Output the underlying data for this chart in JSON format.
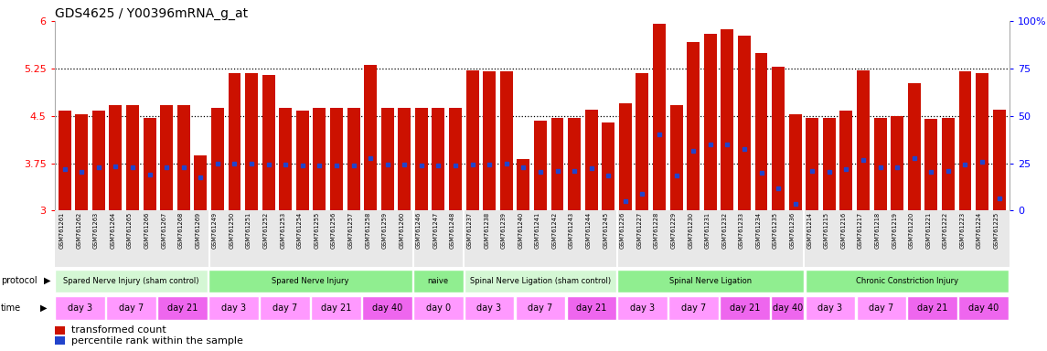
{
  "title": "GDS4625 / Y00396mRNA_g_at",
  "gsm_ids": [
    "GSM761261",
    "GSM761262",
    "GSM761263",
    "GSM761264",
    "GSM761265",
    "GSM761266",
    "GSM761267",
    "GSM761268",
    "GSM761269",
    "GSM761249",
    "GSM761250",
    "GSM761251",
    "GSM761252",
    "GSM761253",
    "GSM761254",
    "GSM761255",
    "GSM761256",
    "GSM761257",
    "GSM761258",
    "GSM761259",
    "GSM761260",
    "GSM761246",
    "GSM761247",
    "GSM761248",
    "GSM761237",
    "GSM761238",
    "GSM761239",
    "GSM761240",
    "GSM761241",
    "GSM761242",
    "GSM761243",
    "GSM761244",
    "GSM761245",
    "GSM761226",
    "GSM761227",
    "GSM761228",
    "GSM761229",
    "GSM761230",
    "GSM761231",
    "GSM761232",
    "GSM761233",
    "GSM761234",
    "GSM761235",
    "GSM761236",
    "GSM761214",
    "GSM761215",
    "GSM761216",
    "GSM761217",
    "GSM761218",
    "GSM761219",
    "GSM761220",
    "GSM761221",
    "GSM761222",
    "GSM761223",
    "GSM761224",
    "GSM761225"
  ],
  "bar_heights": [
    4.58,
    4.52,
    4.58,
    4.67,
    4.67,
    4.47,
    4.67,
    4.67,
    3.88,
    4.63,
    5.18,
    5.18,
    5.15,
    4.63,
    4.58,
    4.63,
    4.63,
    4.63,
    5.3,
    4.63,
    4.63,
    4.63,
    4.63,
    4.63,
    5.22,
    5.2,
    5.2,
    3.82,
    4.42,
    4.47,
    4.47,
    4.6,
    4.4,
    4.7,
    5.17,
    5.95,
    4.67,
    5.67,
    5.8,
    5.87,
    5.77,
    5.5,
    5.28,
    4.52,
    4.47,
    4.47,
    4.58,
    5.22,
    4.47,
    4.5,
    5.02,
    4.45,
    4.47,
    5.2,
    5.17,
    4.6
  ],
  "blue_positions": [
    3.65,
    3.62,
    3.68,
    3.7,
    3.68,
    3.57,
    3.68,
    3.68,
    3.52,
    3.75,
    3.75,
    3.75,
    3.73,
    3.73,
    3.72,
    3.72,
    3.72,
    3.72,
    3.83,
    3.73,
    3.73,
    3.72,
    3.72,
    3.72,
    3.73,
    3.73,
    3.75,
    3.68,
    3.62,
    3.63,
    3.63,
    3.67,
    3.55,
    3.15,
    3.27,
    4.2,
    3.55,
    3.95,
    4.05,
    4.05,
    3.97,
    3.6,
    3.35,
    3.1,
    3.63,
    3.62,
    3.65,
    3.8,
    3.68,
    3.68,
    3.83,
    3.62,
    3.63,
    3.73,
    3.77,
    3.2
  ],
  "ylim_left": [
    3.0,
    6.0
  ],
  "yticks_left": [
    3.0,
    3.75,
    4.5,
    5.25,
    6.0
  ],
  "ylim_right": [
    0,
    100
  ],
  "yticks_right": [
    0,
    25,
    50,
    75,
    100
  ],
  "protocols": [
    {
      "label": "Spared Nerve Injury (sham control)",
      "start": 0,
      "end": 9,
      "color": "#d4f7d4"
    },
    {
      "label": "Spared Nerve Injury",
      "start": 9,
      "end": 21,
      "color": "#90ee90"
    },
    {
      "label": "naive",
      "start": 21,
      "end": 24,
      "color": "#90ee90"
    },
    {
      "label": "Spinal Nerve Ligation (sham control)",
      "start": 24,
      "end": 33,
      "color": "#d4f7d4"
    },
    {
      "label": "Spinal Nerve Ligation",
      "start": 33,
      "end": 44,
      "color": "#90ee90"
    },
    {
      "label": "Chronic Constriction Injury",
      "start": 44,
      "end": 56,
      "color": "#90ee90"
    }
  ],
  "time_groups": [
    {
      "label": "day 3",
      "start": 0,
      "end": 3,
      "color": "#ff99ff"
    },
    {
      "label": "day 7",
      "start": 3,
      "end": 6,
      "color": "#ff99ff"
    },
    {
      "label": "day 21",
      "start": 6,
      "end": 9,
      "color": "#ee66ee"
    },
    {
      "label": "day 3",
      "start": 9,
      "end": 12,
      "color": "#ff99ff"
    },
    {
      "label": "day 7",
      "start": 12,
      "end": 15,
      "color": "#ff99ff"
    },
    {
      "label": "day 21",
      "start": 15,
      "end": 18,
      "color": "#ff99ff"
    },
    {
      "label": "day 40",
      "start": 18,
      "end": 21,
      "color": "#ee66ee"
    },
    {
      "label": "day 0",
      "start": 21,
      "end": 24,
      "color": "#ff99ff"
    },
    {
      "label": "day 3",
      "start": 24,
      "end": 27,
      "color": "#ff99ff"
    },
    {
      "label": "day 7",
      "start": 27,
      "end": 30,
      "color": "#ff99ff"
    },
    {
      "label": "day 21",
      "start": 30,
      "end": 33,
      "color": "#ee66ee"
    },
    {
      "label": "day 3",
      "start": 33,
      "end": 36,
      "color": "#ff99ff"
    },
    {
      "label": "day 7",
      "start": 36,
      "end": 39,
      "color": "#ff99ff"
    },
    {
      "label": "day 21",
      "start": 39,
      "end": 42,
      "color": "#ee66ee"
    },
    {
      "label": "day 40",
      "start": 42,
      "end": 44,
      "color": "#ee66ee"
    },
    {
      "label": "day 3",
      "start": 44,
      "end": 47,
      "color": "#ff99ff"
    },
    {
      "label": "day 7",
      "start": 47,
      "end": 50,
      "color": "#ff99ff"
    },
    {
      "label": "day 21",
      "start": 50,
      "end": 53,
      "color": "#ee66ee"
    },
    {
      "label": "day 40",
      "start": 53,
      "end": 56,
      "color": "#ee66ee"
    }
  ],
  "bar_color": "#cc1100",
  "blue_color": "#2244cc",
  "background_color": "#ffffff",
  "hline_values": [
    3.75,
    4.5,
    5.25
  ],
  "hline_color": "#000000"
}
